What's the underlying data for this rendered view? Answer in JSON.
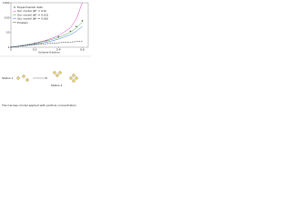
{
  "chart_data": {
    "type": "line",
    "x_label": "Volume fraction",
    "log_y": true,
    "legend": "upper-left",
    "x": [
      0,
      0.1,
      0.2,
      0.3,
      0.4,
      0.5,
      0.55,
      0.6
    ],
    "xlim": [
      0,
      0.65
    ],
    "xticks": [
      0,
      0.2,
      0.4,
      0.6
    ],
    "ylim": [
      1,
      1000
    ],
    "yticks": [
      1,
      10,
      100,
      1000
    ],
    "series": [
      {
        "name": "Experimental data",
        "color": "#555555",
        "marker": true,
        "values": [
          1,
          1.3,
          1.8,
          2.8,
          5,
          12,
          25,
          60
        ]
      },
      {
        "name": "Our model (Φ* = 0.6)",
        "color": "#e040c0",
        "values": [
          1,
          1.3,
          1.9,
          3,
          6,
          20,
          80,
          1000
        ]
      },
      {
        "name": "Our model (Φ* = 0.63)",
        "color": "#40b040",
        "values": [
          1,
          1.3,
          1.8,
          2.7,
          4.5,
          10,
          20,
          50
        ]
      },
      {
        "name": "Our model (Φ* = 0.66)",
        "color": "#4070d0",
        "values": [
          1,
          1.25,
          1.6,
          2.2,
          3.5,
          7,
          12,
          25
        ]
      },
      {
        "name": "Einstein",
        "color": "#000000",
        "dashed": true,
        "values": [
          1,
          1.25,
          1.5,
          1.75,
          2,
          2.25,
          2.375,
          2.5
        ]
      }
    ]
  },
  "schematic": {
    "status_1": "Status 1",
    "status_2": "Status 2",
    "caption": "The Carreau model applied with particle concentration"
  }
}
